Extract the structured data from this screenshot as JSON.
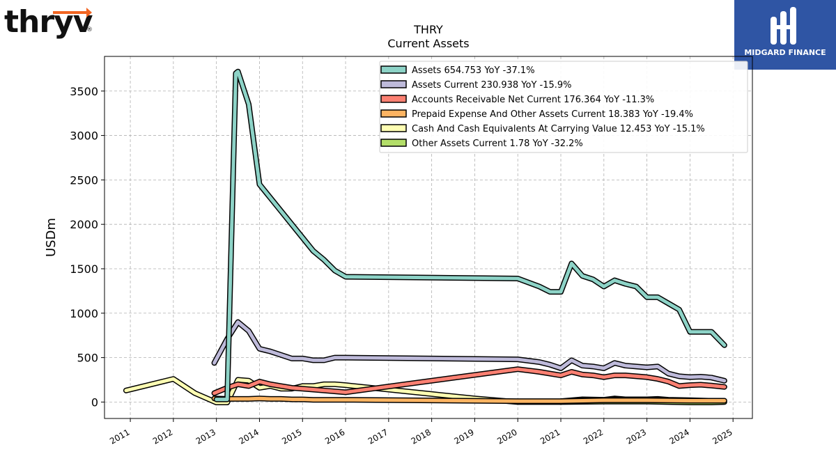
{
  "logos": {
    "left_text": "thryv",
    "left_mark": "®",
    "left_accent_color": "#f26522",
    "right_text": "MIDGARD FINANCE",
    "right_bg_color": "#2f55a4"
  },
  "chart_data": {
    "type": "line",
    "title": "THRY",
    "subtitle": "Current  Assets",
    "ylabel": "USDm",
    "xlabel": "",
    "xlim": [
      2010.4,
      2025.45
    ],
    "ylim": [
      -185,
      3890
    ],
    "grid": true,
    "legend_position": "top-right",
    "y_ticks": [
      0,
      500,
      1000,
      1500,
      2000,
      2500,
      3000,
      3500
    ],
    "x_ticks": [
      2011,
      2012,
      2013,
      2014,
      2015,
      2016,
      2017,
      2018,
      2019,
      2020,
      2021,
      2022,
      2023,
      2024,
      2025
    ],
    "series": [
      {
        "name": "Assets",
        "legend": "Assets  654.753 YoY -37.1%",
        "color": "#8dd3c7",
        "points": [
          [
            2013.0,
            30
          ],
          [
            2013.25,
            30
          ],
          [
            2013.45,
            3700
          ],
          [
            2013.5,
            3720
          ],
          [
            2013.75,
            3350
          ],
          [
            2014.0,
            2450
          ],
          [
            2014.25,
            2300
          ],
          [
            2014.5,
            2150
          ],
          [
            2014.75,
            2000
          ],
          [
            2015.0,
            1850
          ],
          [
            2015.25,
            1700
          ],
          [
            2015.5,
            1600
          ],
          [
            2015.75,
            1480
          ],
          [
            2016.0,
            1410
          ],
          [
            2020.0,
            1390
          ],
          [
            2020.5,
            1300
          ],
          [
            2020.75,
            1240
          ],
          [
            2021.0,
            1240
          ],
          [
            2021.25,
            1560
          ],
          [
            2021.5,
            1420
          ],
          [
            2021.75,
            1380
          ],
          [
            2022.0,
            1300
          ],
          [
            2022.25,
            1370
          ],
          [
            2022.5,
            1330
          ],
          [
            2022.75,
            1300
          ],
          [
            2023.0,
            1180
          ],
          [
            2023.25,
            1180
          ],
          [
            2023.5,
            1110
          ],
          [
            2023.75,
            1040
          ],
          [
            2024.0,
            790
          ],
          [
            2024.25,
            790
          ],
          [
            2024.5,
            790
          ],
          [
            2024.8,
            640
          ]
        ]
      },
      {
        "name": "Assets Current",
        "legend": "Assets Current  230.938 YoY -15.9%",
        "color": "#bebada",
        "points": [
          [
            2012.95,
            440
          ],
          [
            2013.25,
            710
          ],
          [
            2013.5,
            900
          ],
          [
            2013.75,
            800
          ],
          [
            2014.0,
            600
          ],
          [
            2014.25,
            570
          ],
          [
            2014.5,
            530
          ],
          [
            2014.75,
            490
          ],
          [
            2015.0,
            490
          ],
          [
            2015.25,
            470
          ],
          [
            2015.5,
            470
          ],
          [
            2015.75,
            500
          ],
          [
            2016.0,
            500
          ],
          [
            2020.0,
            480
          ],
          [
            2020.5,
            450
          ],
          [
            2020.75,
            420
          ],
          [
            2021.0,
            380
          ],
          [
            2021.25,
            470
          ],
          [
            2021.5,
            410
          ],
          [
            2021.75,
            400
          ],
          [
            2022.0,
            380
          ],
          [
            2022.25,
            440
          ],
          [
            2022.5,
            410
          ],
          [
            2022.75,
            400
          ],
          [
            2023.0,
            390
          ],
          [
            2023.25,
            400
          ],
          [
            2023.5,
            320
          ],
          [
            2023.75,
            290
          ],
          [
            2024.0,
            280
          ],
          [
            2024.25,
            285
          ],
          [
            2024.5,
            275
          ],
          [
            2024.8,
            240
          ]
        ]
      },
      {
        "name": "Accounts Receivable Net Current",
        "legend": "Accounts Receivable Net Current  176.364 YoY -11.3%",
        "color": "#fb8072",
        "points": [
          [
            2012.95,
            100
          ],
          [
            2013.25,
            160
          ],
          [
            2013.5,
            200
          ],
          [
            2013.75,
            180
          ],
          [
            2014.0,
            230
          ],
          [
            2014.25,
            200
          ],
          [
            2014.5,
            180
          ],
          [
            2014.75,
            160
          ],
          [
            2015.0,
            150
          ],
          [
            2015.5,
            130
          ],
          [
            2016.0,
            110
          ],
          [
            2020.0,
            370
          ],
          [
            2020.5,
            340
          ],
          [
            2020.75,
            320
          ],
          [
            2021.0,
            300
          ],
          [
            2021.25,
            340
          ],
          [
            2021.5,
            310
          ],
          [
            2021.75,
            300
          ],
          [
            2022.0,
            280
          ],
          [
            2022.25,
            300
          ],
          [
            2022.5,
            300
          ],
          [
            2022.75,
            290
          ],
          [
            2023.0,
            280
          ],
          [
            2023.25,
            260
          ],
          [
            2023.5,
            230
          ],
          [
            2023.75,
            180
          ],
          [
            2024.0,
            190
          ],
          [
            2024.25,
            195
          ],
          [
            2024.5,
            185
          ],
          [
            2024.8,
            170
          ]
        ]
      },
      {
        "name": "Prepaid Expense And Other Assets Current",
        "legend": "Prepaid Expense And Other Assets Current  18.383 YoY -19.4%",
        "color": "#fdb462",
        "points": [
          [
            2012.95,
            40
          ],
          [
            2013.25,
            35
          ],
          [
            2013.5,
            35
          ],
          [
            2013.75,
            35
          ],
          [
            2014.0,
            40
          ],
          [
            2014.25,
            35
          ],
          [
            2014.5,
            35
          ],
          [
            2014.75,
            30
          ],
          [
            2015.0,
            30
          ],
          [
            2015.25,
            25
          ],
          [
            2015.5,
            25
          ],
          [
            2015.75,
            25
          ],
          [
            2016.0,
            25
          ],
          [
            2020.0,
            10
          ],
          [
            2020.5,
            10
          ],
          [
            2021.0,
            10
          ],
          [
            2022.0,
            20
          ],
          [
            2023.0,
            20
          ],
          [
            2024.0,
            15
          ],
          [
            2024.8,
            15
          ]
        ]
      },
      {
        "name": "Cash And Cash Equivalents At Carrying Value",
        "legend": "Cash And Cash Equivalents At Carrying Value  12.453 YoY -15.1%",
        "color": "#ffffb3",
        "points": [
          [
            2010.9,
            130
          ],
          [
            2012.0,
            260
          ],
          [
            2012.5,
            100
          ],
          [
            2013.0,
            -5
          ],
          [
            2013.25,
            -5
          ],
          [
            2013.5,
            250
          ],
          [
            2013.75,
            240
          ],
          [
            2014.0,
            160
          ],
          [
            2014.25,
            180
          ],
          [
            2014.5,
            150
          ],
          [
            2014.75,
            150
          ],
          [
            2015.0,
            180
          ],
          [
            2015.25,
            180
          ],
          [
            2015.5,
            200
          ],
          [
            2015.75,
            200
          ],
          [
            2016.0,
            190
          ],
          [
            2017.0,
            140
          ],
          [
            2018.0,
            90
          ],
          [
            2019.0,
            40
          ],
          [
            2020.0,
            0
          ],
          [
            2021.0,
            0
          ]
        ]
      },
      {
        "name": "Other Assets Current",
        "legend": "Other Assets Current  1.78 YoY -32.2%",
        "color": "#b3de69",
        "points": [
          [
            2021.0,
            0
          ],
          [
            2022.0,
            5
          ],
          [
            2023.0,
            5
          ],
          [
            2023.5,
            0
          ],
          [
            2024.0,
            -5
          ],
          [
            2024.5,
            -5
          ],
          [
            2024.8,
            0
          ]
        ]
      }
    ],
    "shadow_lines": {
      "color": "#000000",
      "points": [
        [
          2021.0,
          30
        ],
        [
          2021.5,
          50
        ],
        [
          2022.0,
          45
        ],
        [
          2022.25,
          60
        ],
        [
          2022.5,
          50
        ],
        [
          2023.0,
          50
        ],
        [
          2023.25,
          55
        ],
        [
          2023.5,
          45
        ],
        [
          2024.0,
          40
        ],
        [
          2024.8,
          30
        ]
      ]
    }
  }
}
